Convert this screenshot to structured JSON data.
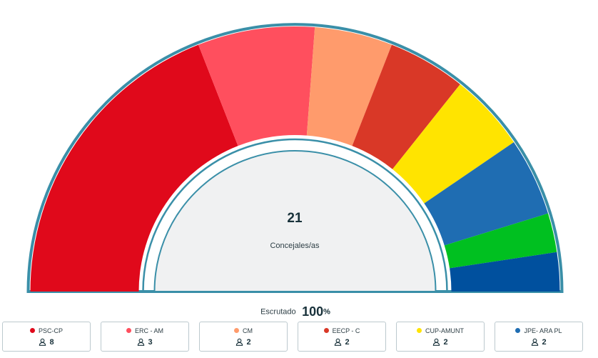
{
  "chart_data": {
    "type": "pie",
    "subtype": "parliament-semicircle",
    "total_seats": "21",
    "total_label": "Concejales/as",
    "series": [
      {
        "name": "PSC-CP",
        "seats": 8,
        "color": "#e0091b"
      },
      {
        "name": "ERC - AM",
        "seats": 3,
        "color": "#ff4f5e"
      },
      {
        "name": "CM",
        "seats": 2,
        "color": "#ff9b6c"
      },
      {
        "name": "EECP - C",
        "seats": 2,
        "color": "#d93827"
      },
      {
        "name": "CUP-AMUNT",
        "seats": 2,
        "color": "#ffe400"
      },
      {
        "name": "JPE- ARA PL",
        "seats": 2,
        "color": "#1f6db2"
      },
      {
        "name": "",
        "seats": 1,
        "color": "#00c020"
      },
      {
        "name": "",
        "seats": 1,
        "color": "#00509e"
      }
    ]
  },
  "scrutiny": {
    "label": "Escrutado",
    "value": "100",
    "unit": "%"
  },
  "legend": [
    {
      "name": "PSC-CP",
      "seats": "8",
      "color": "#e0091b"
    },
    {
      "name": "ERC - AM",
      "seats": "3",
      "color": "#ff4f5e"
    },
    {
      "name": "CM",
      "seats": "2",
      "color": "#ff9b6c"
    },
    {
      "name": "EECP - C",
      "seats": "2",
      "color": "#d93827"
    },
    {
      "name": "CUP-AMUNT",
      "seats": "2",
      "color": "#ffe400"
    },
    {
      "name": "JPE- ARA PL",
      "seats": "2",
      "color": "#1f6db2"
    }
  ],
  "colors": {
    "border": "#3a8fa8",
    "inner_fill": "#f0f1f2"
  }
}
